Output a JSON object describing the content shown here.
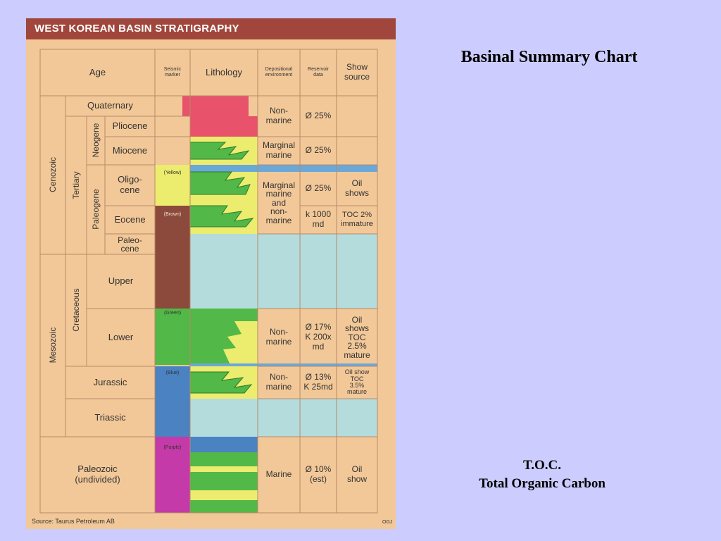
{
  "slide": {
    "title": "Basinal Summary Chart",
    "note_abbr": "T.O.C.",
    "note_full": "Total Organic Carbon"
  },
  "figure": {
    "title": "WEST KOREAN BASIN STRATIGRAPHY",
    "source": "Source: Taurus Petroleum AB",
    "code": "OGJ",
    "headers": {
      "age": "Age",
      "seismic_marker": "Seismic\nmarker",
      "lithology": "Lithology",
      "depositional_environment": "Depositional\nenvironment",
      "reservoir_data": "Reservoir\ndata",
      "show_source": "Show\nsource"
    },
    "eras": [
      "Cenozoic",
      "Mesozoic"
    ],
    "sub_eras": [
      "Tertiary",
      "Cretaceous"
    ],
    "sub_periods": [
      "Neogene",
      "Paleogene"
    ],
    "ages": {
      "quaternary": "Quaternary",
      "pliocene": "Pliocene",
      "miocene": "Miocene",
      "oligocene": "Oligo-\ncene",
      "eocene": "Eocene",
      "paleocene": "Paleo-\ncene",
      "upper": "Upper",
      "lower": "Lower",
      "jurassic": "Jurassic",
      "triassic": "Triassic",
      "paleozoic": "Paleozoic\n(undivided)"
    },
    "seismic_markers": [
      "(Yellow)",
      "(Brown)",
      "(Green)",
      "(Blue)",
      "(Purple)"
    ],
    "depositional": {
      "quaternary": "Non-\nmarine",
      "miocene": "Marginal\nmarine",
      "paleogene": "Marginal\nmarine\nand\nnon-\nmarine",
      "lower_cretaceous": "Non-\nmarine",
      "jurassic": "Non-\nmarine",
      "paleozoic": "Marine"
    },
    "reservoir": {
      "quaternary": "Ø 25%",
      "miocene": "Ø 25%",
      "oligocene": "Ø 25%",
      "eocene": "k 1000\nmd",
      "lower_cretaceous": "Ø 17%\nK 200x\nmd",
      "jurassic": "Ø 13%\nK 25md",
      "paleozoic": "Ø 10%\n(est)"
    },
    "show": {
      "oligocene": "Oil\nshows",
      "eocene": "TOC 2%\nimmature",
      "lower_cretaceous": "Oil\nshows\nTOC\n2.5%\nmature",
      "jurassic": "Oil show\nTOC\n3.5%\nmature",
      "paleozoic": "Oil\nshow"
    },
    "colors": {
      "background": "#f2c898",
      "header_band": "#a0463c",
      "grid_line": "#b88a68",
      "pink": "#e8526a",
      "yellow": "#ecec6e",
      "green": "#52b848",
      "brown": "#8c4a3c",
      "blue": "#4a82c2",
      "purple": "#c43aa8",
      "light_blue": "#b4dcdc",
      "wave_blue": "#6aa8d8"
    }
  }
}
